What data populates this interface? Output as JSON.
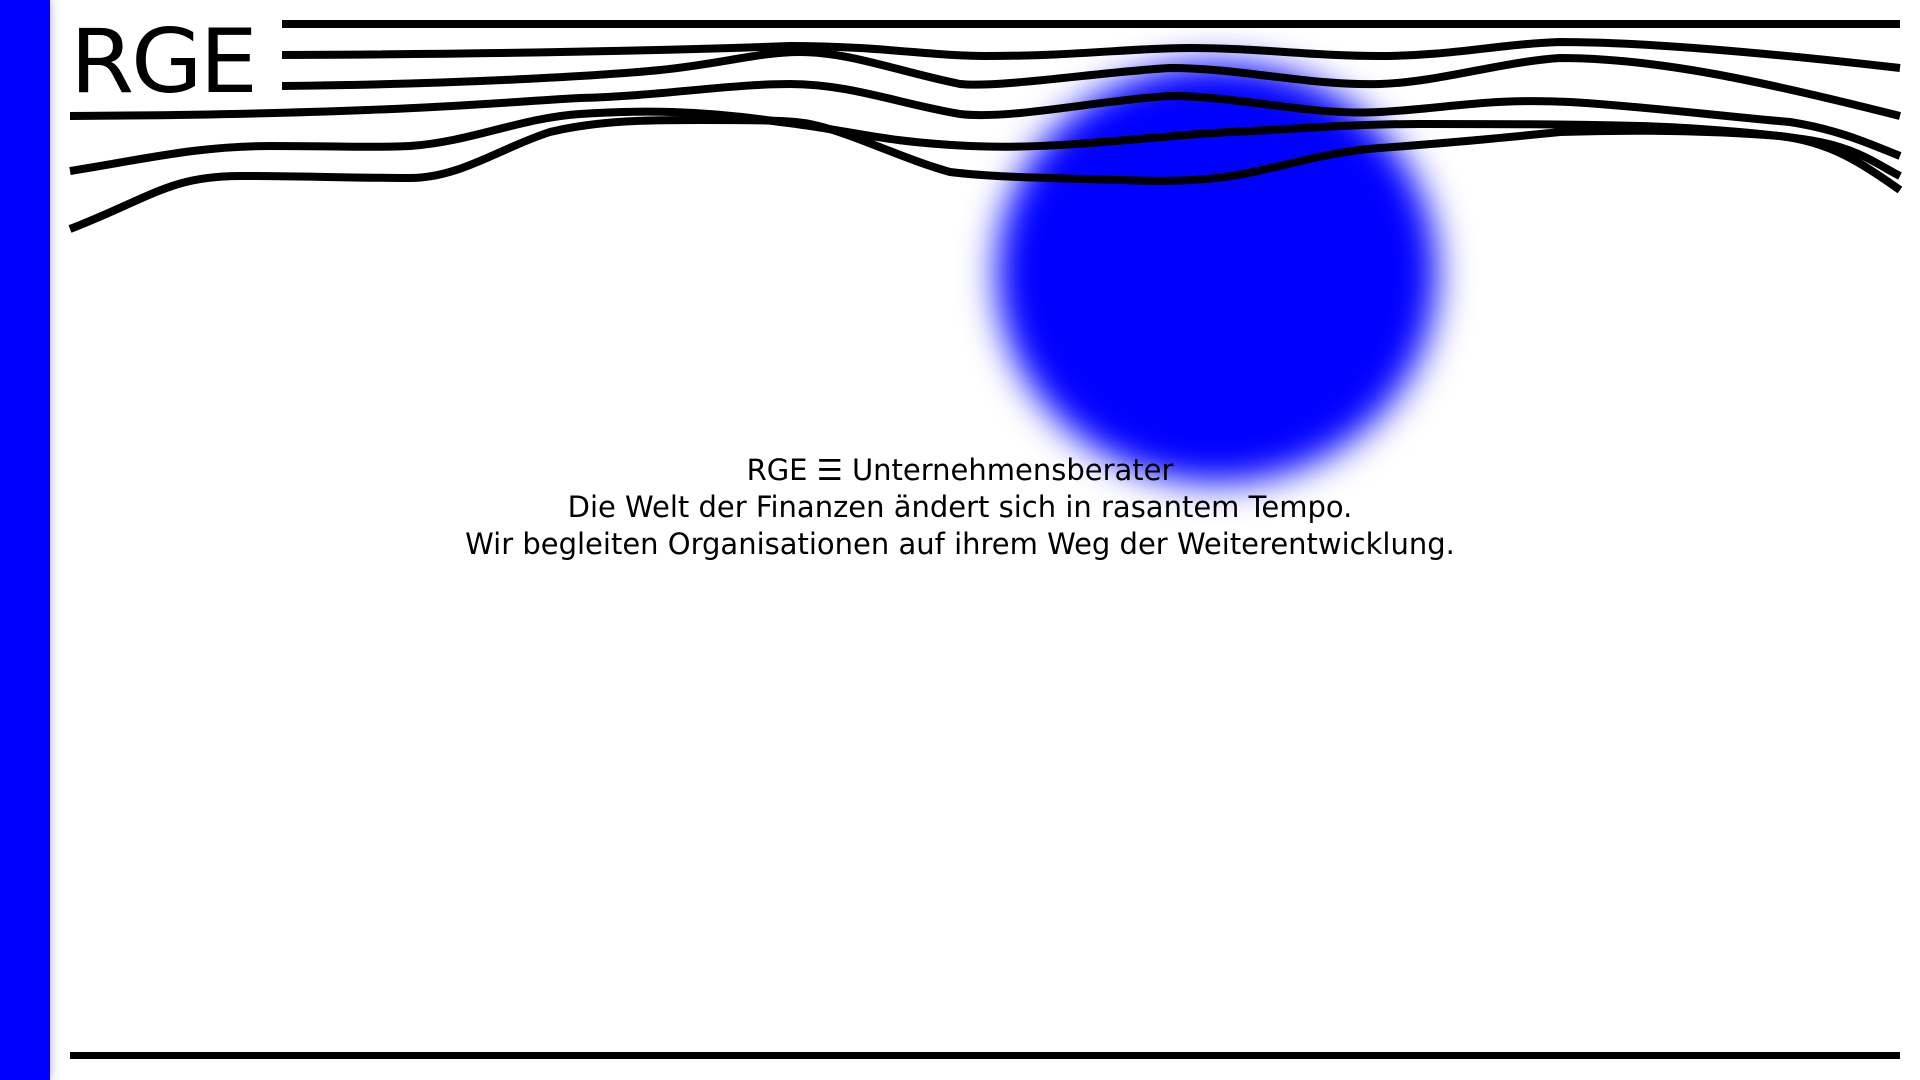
{
  "brand": {
    "logo_text": "RGE",
    "accent_color": "#0000ff"
  },
  "tagline": {
    "line1": "RGE ☰ Unternehmensberater",
    "line2": "Die Welt der Finanzen ändert sich in rasantem Tempo.",
    "line3": "Wir begleiten Organisationen auf ihrem Weg der Weiterentwicklung."
  }
}
